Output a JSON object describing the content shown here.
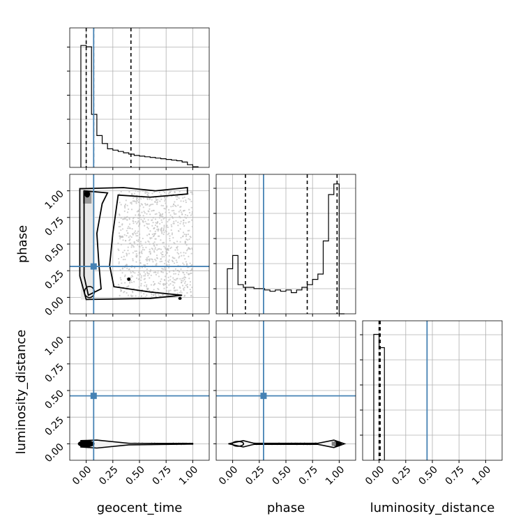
{
  "chart_data": {
    "type": "corner",
    "parameters": [
      "geocent_time",
      "phase",
      "luminosity_distance"
    ],
    "truths": {
      "geocent_time": 0.07,
      "phase": 0.29,
      "luminosity_distance": 0.45
    },
    "quantiles": {
      "geocent_time": [
        0.0,
        0.07,
        0.42
      ],
      "phase": [
        0.12,
        0.7,
        0.98
      ],
      "luminosity_distance": [
        0.0,
        0.01
      ]
    },
    "ticks": {
      "values": [
        0.0,
        0.25,
        0.5,
        0.75,
        1.0
      ],
      "labels": [
        "0.00",
        "0.25",
        "0.50",
        "0.75",
        "1.00"
      ]
    },
    "axis_range": [
      -0.1,
      1.1
    ],
    "grid": true,
    "histograms": {
      "geocent_time": {
        "edges": [
          -0.05,
          0.0,
          0.05,
          0.1,
          0.15,
          0.2,
          0.25,
          0.3,
          0.35,
          0.4,
          0.45,
          0.5,
          0.55,
          0.6,
          0.65,
          0.7,
          0.75,
          0.8,
          0.85,
          0.9,
          0.95,
          1.0,
          1.05
        ],
        "counts": [
          0.92,
          0.91,
          0.4,
          0.24,
          0.18,
          0.14,
          0.13,
          0.12,
          0.11,
          0.1,
          0.09,
          0.085,
          0.08,
          0.075,
          0.07,
          0.065,
          0.06,
          0.055,
          0.05,
          0.04,
          0.02,
          0.005
        ]
      },
      "phase": {
        "edges": [
          -0.05,
          0.0,
          0.05,
          0.1,
          0.15,
          0.2,
          0.25,
          0.3,
          0.35,
          0.4,
          0.45,
          0.5,
          0.55,
          0.6,
          0.65,
          0.7,
          0.75,
          0.8,
          0.85,
          0.9,
          0.95,
          1.0,
          1.05
        ],
        "counts": [
          0.34,
          0.44,
          0.22,
          0.2,
          0.2,
          0.19,
          0.19,
          0.18,
          0.17,
          0.18,
          0.17,
          0.18,
          0.16,
          0.18,
          0.2,
          0.22,
          0.26,
          0.3,
          0.55,
          0.9,
          0.98,
          0.0
        ]
      },
      "luminosity_distance": {
        "edges": [
          -0.05,
          0.0,
          0.05
        ],
        "counts": [
          0.95,
          0.85
        ]
      }
    }
  }
}
